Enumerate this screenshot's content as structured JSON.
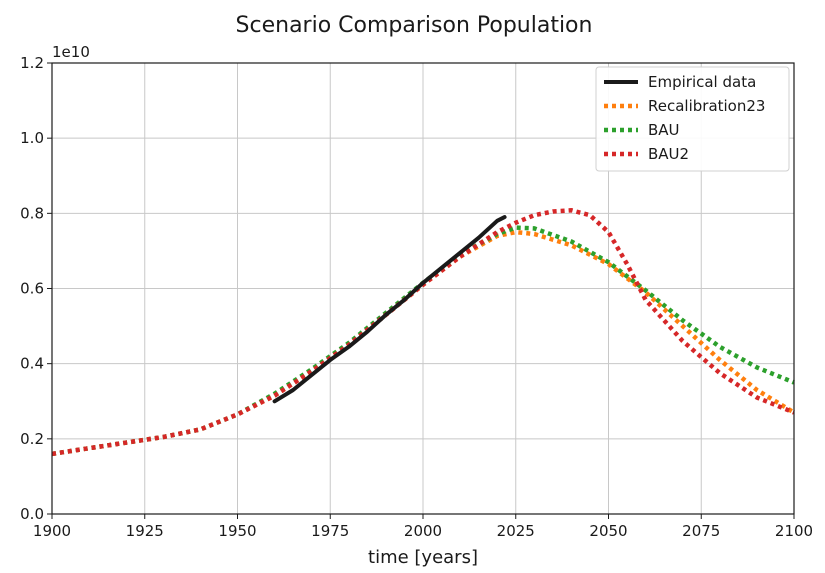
{
  "chart_data": {
    "type": "line",
    "title": "Scenario Comparison Population",
    "xlabel": "time [years]",
    "ylabel": "",
    "offset_label": "1e10",
    "xlim": [
      1900,
      2100
    ],
    "ylim": [
      0.0,
      1.2
    ],
    "xticks": [
      1900,
      1925,
      1950,
      1975,
      2000,
      2025,
      2050,
      2075,
      2100
    ],
    "xtick_labels": [
      "1900",
      "1925",
      "1950",
      "1975",
      "2000",
      "2025",
      "2050",
      "2075",
      "2100"
    ],
    "yticks": [
      0.0,
      0.2,
      0.4,
      0.6,
      0.8,
      1.0,
      1.2
    ],
    "ytick_labels": [
      "0.0",
      "0.2",
      "0.4",
      "0.6",
      "0.8",
      "1.0",
      "1.2"
    ],
    "grid": true,
    "legend_position": "top-right",
    "series": [
      {
        "name": "Empirical data",
        "color": "#1a1a1a",
        "style": "solid",
        "x": [
          1960,
          1965,
          1970,
          1975,
          1980,
          1985,
          1990,
          1995,
          2000,
          2005,
          2010,
          2015,
          2020,
          2022
        ],
        "y": [
          0.3,
          0.33,
          0.37,
          0.41,
          0.445,
          0.485,
          0.53,
          0.57,
          0.615,
          0.655,
          0.695,
          0.735,
          0.78,
          0.79
        ]
      },
      {
        "name": "Recalibration23",
        "color": "#ff7f0e",
        "style": "dotted",
        "x": [
          1900,
          1910,
          1920,
          1930,
          1940,
          1950,
          1960,
          1970,
          1980,
          1990,
          2000,
          2010,
          2020,
          2025,
          2030,
          2040,
          2050,
          2060,
          2070,
          2080,
          2090,
          2100
        ],
        "y": [
          0.16,
          0.175,
          0.19,
          0.205,
          0.225,
          0.265,
          0.315,
          0.38,
          0.45,
          0.53,
          0.61,
          0.685,
          0.74,
          0.75,
          0.745,
          0.715,
          0.665,
          0.59,
          0.5,
          0.41,
          0.33,
          0.27
        ]
      },
      {
        "name": "BAU",
        "color": "#2ca02c",
        "style": "dotted",
        "x": [
          1900,
          1910,
          1920,
          1930,
          1940,
          1950,
          1960,
          1970,
          1980,
          1990,
          2000,
          2010,
          2020,
          2025,
          2030,
          2040,
          2050,
          2060,
          2070,
          2080,
          2090,
          2100
        ],
        "y": [
          0.16,
          0.175,
          0.19,
          0.205,
          0.225,
          0.265,
          0.32,
          0.385,
          0.455,
          0.535,
          0.615,
          0.69,
          0.745,
          0.762,
          0.76,
          0.725,
          0.67,
          0.595,
          0.515,
          0.445,
          0.39,
          0.35
        ]
      },
      {
        "name": "BAU2",
        "color": "#d62728",
        "style": "dotted",
        "x": [
          1900,
          1910,
          1920,
          1930,
          1940,
          1950,
          1960,
          1970,
          1980,
          1990,
          2000,
          2010,
          2020,
          2025,
          2030,
          2035,
          2040,
          2045,
          2050,
          2055,
          2060,
          2070,
          2080,
          2090,
          2100
        ],
        "y": [
          0.16,
          0.175,
          0.19,
          0.205,
          0.225,
          0.265,
          0.315,
          0.38,
          0.45,
          0.53,
          0.61,
          0.685,
          0.75,
          0.775,
          0.795,
          0.805,
          0.808,
          0.795,
          0.75,
          0.665,
          0.57,
          0.46,
          0.375,
          0.31,
          0.27
        ]
      }
    ]
  }
}
